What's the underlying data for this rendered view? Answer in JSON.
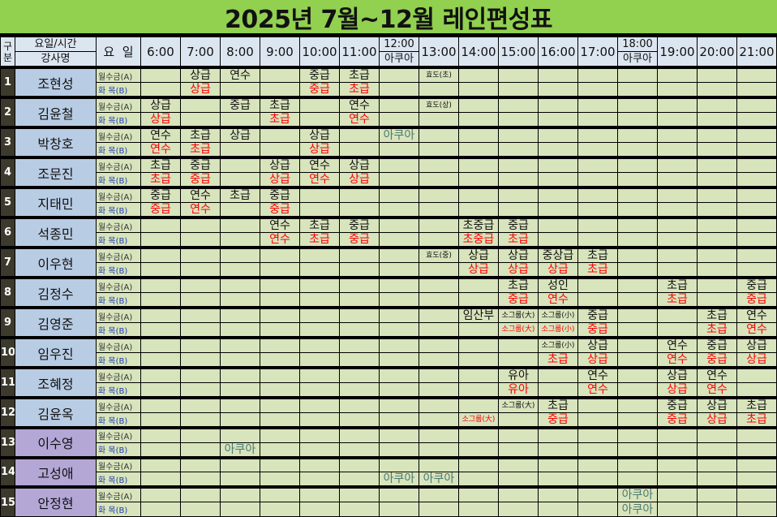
{
  "title": "2025년 7월~12월 레인편성표",
  "header": {
    "gubun": "구 분",
    "day_time": "요일/시간",
    "teacher": "강사명",
    "day": "요  일",
    "times": [
      "6:00",
      "7:00",
      "8:00",
      "9:00",
      "10:00",
      "11:00",
      "12:00",
      "13:00",
      "14:00",
      "15:00",
      "16:00",
      "17:00",
      "18:00",
      "19:00",
      "20:00",
      "21:00"
    ],
    "sub": {
      "6": "아쿠아",
      "12": "아쿠아"
    }
  },
  "day_labels": {
    "a": "월수금(A)",
    "b": "화  목(B)"
  },
  "colors": {
    "title_bg": "#92d050",
    "header_bg": "#dce6f1",
    "name_bg": "#b8cce4",
    "name_bg_alt": "#b4a7d6",
    "cell_bg": "#d8e4bc",
    "b_row_text": "#ff0000"
  },
  "rows": [
    {
      "no": "1",
      "name": "조현성",
      "a": [
        "",
        "상급",
        "연수",
        "",
        "중급",
        "초급",
        "",
        "효도(초)",
        "",
        "",
        "",
        "",
        "",
        "",
        "",
        ""
      ],
      "b": [
        "",
        "상급",
        "",
        "",
        "중급",
        "초급",
        "",
        "",
        "",
        "",
        "",
        "",
        "",
        "",
        "",
        ""
      ]
    },
    {
      "no": "2",
      "name": "김윤철",
      "a": [
        "상급",
        "",
        "중급",
        "초급",
        "",
        "연수",
        "",
        "효도(상)",
        "",
        "",
        "",
        "",
        "",
        "",
        "",
        ""
      ],
      "b": [
        "상급",
        "",
        "",
        "초급",
        "",
        "연수",
        "",
        "",
        "",
        "",
        "",
        "",
        "",
        "",
        "",
        ""
      ]
    },
    {
      "no": "3",
      "name": "박창호",
      "a": [
        "연수",
        "초급",
        "상급",
        "",
        "상급",
        "",
        "아쿠아",
        "",
        "",
        "",
        "",
        "",
        "",
        "",
        "",
        ""
      ],
      "b": [
        "연수",
        "초급",
        "",
        "",
        "상급",
        "",
        "",
        "",
        "",
        "",
        "",
        "",
        "",
        "",
        "",
        ""
      ]
    },
    {
      "no": "4",
      "name": "조문진",
      "a": [
        "초급",
        "중급",
        "",
        "상급",
        "연수",
        "상급",
        "",
        "",
        "",
        "",
        "",
        "",
        "",
        "",
        "",
        ""
      ],
      "b": [
        "초급",
        "중급",
        "",
        "상급",
        "연수",
        "상급",
        "",
        "",
        "",
        "",
        "",
        "",
        "",
        "",
        "",
        ""
      ]
    },
    {
      "no": "5",
      "name": "지태민",
      "a": [
        "중급",
        "연수",
        "초급",
        "중급",
        "",
        "",
        "",
        "",
        "",
        "",
        "",
        "",
        "",
        "",
        "",
        ""
      ],
      "b": [
        "중급",
        "연수",
        "",
        "중급",
        "",
        "",
        "",
        "",
        "",
        "",
        "",
        "",
        "",
        "",
        "",
        ""
      ]
    },
    {
      "no": "6",
      "name": "석종민",
      "a": [
        "",
        "",
        "",
        "연수",
        "초급",
        "중급",
        "",
        "",
        "초중급",
        "중급",
        "",
        "",
        "",
        "",
        "",
        ""
      ],
      "b": [
        "",
        "",
        "",
        "연수",
        "초급",
        "중급",
        "",
        "",
        "초중급",
        "초급",
        "",
        "",
        "",
        "",
        "",
        ""
      ]
    },
    {
      "no": "7",
      "name": "이우현",
      "a": [
        "",
        "",
        "",
        "",
        "",
        "",
        "",
        "효도(중)",
        "상급",
        "상급",
        "중상급",
        "초급",
        "",
        "",
        "",
        ""
      ],
      "b": [
        "",
        "",
        "",
        "",
        "",
        "",
        "",
        "",
        "상급",
        "상급",
        "상급",
        "초급",
        "",
        "",
        "",
        ""
      ]
    },
    {
      "no": "8",
      "name": "김정수",
      "a": [
        "",
        "",
        "",
        "",
        "",
        "",
        "",
        "",
        "",
        "초급",
        "성인",
        "",
        "",
        "초급",
        "",
        "중급"
      ],
      "b": [
        "",
        "",
        "",
        "",
        "",
        "",
        "",
        "",
        "",
        "중급",
        "연수",
        "",
        "",
        "초급",
        "",
        "중급"
      ]
    },
    {
      "no": "9",
      "name": "김영준",
      "a": [
        "",
        "",
        "",
        "",
        "",
        "",
        "",
        "",
        "임산부",
        "소그룹(大)",
        "소그룹(小)",
        "중급",
        "",
        "",
        "초급",
        "연수"
      ],
      "b": [
        "",
        "",
        "",
        "",
        "",
        "",
        "",
        "",
        "",
        "소그룹(大)",
        "소그룹(小)",
        "중급",
        "",
        "",
        "초급",
        "연수"
      ]
    },
    {
      "no": "10",
      "name": "임우진",
      "a": [
        "",
        "",
        "",
        "",
        "",
        "",
        "",
        "",
        "",
        "",
        "소그룹(小)",
        "상급",
        "",
        "연수",
        "중급",
        "상급"
      ],
      "b": [
        "",
        "",
        "",
        "",
        "",
        "",
        "",
        "",
        "",
        "",
        "초급",
        "상급",
        "",
        "연수",
        "중급",
        "상급"
      ]
    },
    {
      "no": "11",
      "name": "조혜정",
      "a": [
        "",
        "",
        "",
        "",
        "",
        "",
        "",
        "",
        "",
        "유아",
        "",
        "연수",
        "",
        "상급",
        "연수",
        ""
      ],
      "b": [
        "",
        "",
        "",
        "",
        "",
        "",
        "",
        "",
        "",
        "유아",
        "",
        "연수",
        "",
        "상급",
        "연수",
        ""
      ]
    },
    {
      "no": "12",
      "name": "김윤옥",
      "a": [
        "",
        "",
        "",
        "",
        "",
        "",
        "",
        "",
        "",
        "소그룹(大)",
        "초급",
        "",
        "",
        "중급",
        "상급",
        "초급"
      ],
      "b": [
        "",
        "",
        "",
        "",
        "",
        "",
        "",
        "",
        "소그룹(大)",
        "",
        "중급",
        "",
        "",
        "중급",
        "상급",
        "초급"
      ]
    },
    {
      "no": "13",
      "name": "이수영",
      "alt": true,
      "a": [
        "",
        "",
        "",
        "",
        "",
        "",
        "",
        "",
        "",
        "",
        "",
        "",
        "",
        "",
        "",
        ""
      ],
      "b": [
        "",
        "",
        "아쿠아",
        "",
        "",
        "",
        "",
        "",
        "",
        "",
        "",
        "",
        "",
        "",
        "",
        ""
      ]
    },
    {
      "no": "14",
      "name": "고성애",
      "alt": true,
      "a": [
        "",
        "",
        "",
        "",
        "",
        "",
        "",
        "",
        "",
        "",
        "",
        "",
        "",
        "",
        "",
        ""
      ],
      "b": [
        "",
        "",
        "",
        "",
        "",
        "",
        "아쿠아",
        "아쿠아",
        "",
        "",
        "",
        "",
        "",
        "",
        "",
        ""
      ]
    },
    {
      "no": "15",
      "name": "안정현",
      "alt": true,
      "a": [
        "",
        "",
        "",
        "",
        "",
        "",
        "",
        "",
        "",
        "",
        "",
        "",
        "아쿠아",
        "",
        "",
        ""
      ],
      "b": [
        "",
        "",
        "",
        "",
        "",
        "",
        "",
        "",
        "",
        "",
        "",
        "",
        "아쿠아",
        "",
        "",
        ""
      ]
    }
  ]
}
